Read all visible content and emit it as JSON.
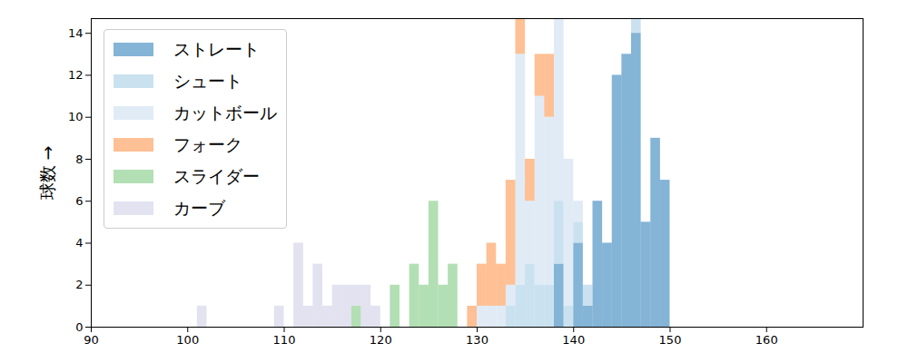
{
  "chart_data": {
    "type": "histogram",
    "ylabel": "球数",
    "xlim": [
      90,
      170
    ],
    "xticks": [
      90,
      100,
      110,
      120,
      130,
      140,
      150,
      160
    ],
    "ylim": [
      0,
      14.7
    ],
    "yticks": [
      0,
      2,
      4,
      6,
      8,
      10,
      12,
      14
    ],
    "grid": false,
    "legend": "upper left",
    "series": [
      {
        "name": "ストレート",
        "color": "#1f77b4",
        "bins": [
          138,
          139,
          140,
          141,
          142,
          143,
          144,
          145,
          146,
          147,
          148,
          149,
          150
        ],
        "counts": [
          3,
          0,
          4,
          1,
          6,
          4,
          12,
          13,
          14,
          5,
          9,
          7
        ]
      },
      {
        "name": "シュート",
        "color": "#9ecae1",
        "bins": [
          133,
          134,
          135,
          136,
          137,
          138,
          139,
          140,
          141,
          142,
          143,
          144,
          145,
          146,
          147
        ],
        "counts": [
          1,
          2,
          3,
          2,
          2,
          3,
          1,
          1,
          1,
          0,
          0,
          0,
          0,
          1
        ]
      },
      {
        "name": "カットボール",
        "color": "#c6dbef",
        "bins": [
          130,
          131,
          132,
          133,
          134,
          135,
          136,
          137,
          138,
          139,
          140,
          141
        ],
        "counts": [
          1,
          1,
          1,
          1,
          11,
          3,
          9,
          8,
          10,
          7,
          1
        ]
      },
      {
        "name": "フォーク",
        "color": "#fd8d3c",
        "bins": [
          129,
          130,
          131,
          132,
          133,
          134,
          135,
          136,
          137,
          138
        ],
        "counts": [
          1,
          2,
          3,
          2,
          5,
          2,
          2,
          2,
          3
        ]
      },
      {
        "name": "スライダー",
        "color": "#74c476",
        "bins": [
          117,
          118,
          119,
          120,
          121,
          122,
          123,
          124,
          125,
          126,
          127,
          128
        ],
        "counts": [
          1,
          0,
          0,
          0,
          2,
          0,
          3,
          2,
          6,
          2,
          3
        ]
      },
      {
        "name": "カーブ",
        "color": "#cbcbe3",
        "bins": [
          101,
          102,
          103,
          104,
          105,
          106,
          107,
          108,
          109,
          110,
          111,
          112,
          113,
          114,
          115,
          116,
          117,
          118,
          119,
          120
        ],
        "counts": [
          1,
          0,
          0,
          0,
          0,
          0,
          0,
          0,
          1,
          0,
          4,
          1,
          3,
          1,
          2,
          2,
          1,
          2,
          1
        ]
      }
    ]
  }
}
